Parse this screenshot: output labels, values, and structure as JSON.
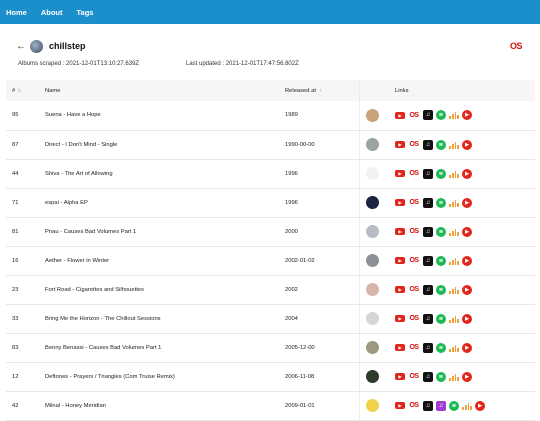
{
  "nav": {
    "home": "Home",
    "about": "About",
    "tags": "Tags"
  },
  "page": {
    "title": "chillstep",
    "back_icon": "←",
    "lastfm_logo": "OS",
    "albums_scraped_label": "Albums scraped :",
    "albums_scraped_value": "2021-12-01T13:10:27.639Z",
    "last_updated_label": "Last updated :",
    "last_updated_value": "2021-12-01T17:47:56.802Z"
  },
  "table": {
    "headers": {
      "num": "#",
      "name": "Name",
      "released": "Released at",
      "links": "Links"
    },
    "sort_icon": "⇅",
    "sort_active_icon": "↑",
    "link_icons": {
      "youtube": "▶",
      "lastfm": "OS",
      "apple": "♫",
      "amazon": "♫",
      "spotify": "≋",
      "ytmusic": "▶"
    },
    "rows": [
      {
        "num": "95",
        "name": "Suena - Have a Hope",
        "released": "1989",
        "thumb": "#c9a27a",
        "amazon": false
      },
      {
        "num": "87",
        "name": "Direct - I Don't Mind - Single",
        "released": "1990-00-00",
        "thumb": "#9aa3a0",
        "amazon": false
      },
      {
        "num": "44",
        "name": "Shiva - The Art of Allowing",
        "released": "1996",
        "thumb": "#f2f2f2",
        "amazon": false
      },
      {
        "num": "71",
        "name": "espai - Alpha EP",
        "released": "1996",
        "thumb": "#1d2240",
        "amazon": false
      },
      {
        "num": "81",
        "name": "Pnau - Causes Bad Volumes Part 1",
        "released": "2000",
        "thumb": "#b8bcc4",
        "amazon": false
      },
      {
        "num": "16",
        "name": "Aether - Flower in Winter",
        "released": "2002-01-02",
        "thumb": "#8d9196",
        "amazon": false
      },
      {
        "num": "23",
        "name": "Fort Road - Cigarettes and Silhouettes",
        "released": "2002",
        "thumb": "#d9b4a8",
        "amazon": false
      },
      {
        "num": "33",
        "name": "Bring Me the Horizon - The Chillout Sessions",
        "released": "2004",
        "thumb": "#d6d6d6",
        "amazon": false
      },
      {
        "num": "83",
        "name": "Benny Benassi - Causes Bad Volumes Part 1",
        "released": "2005-12-00",
        "thumb": "#9b9a80",
        "amazon": false
      },
      {
        "num": "12",
        "name": "Deftones - Prayers / Triangles (Com Truise Remix)",
        "released": "2006-11-08",
        "thumb": "#2d3a2a",
        "amazon": false
      },
      {
        "num": "42",
        "name": "Milnal - Honey Meridian",
        "released": "2009-01-01",
        "thumb": "#f0d24a",
        "amazon": true
      }
    ]
  }
}
